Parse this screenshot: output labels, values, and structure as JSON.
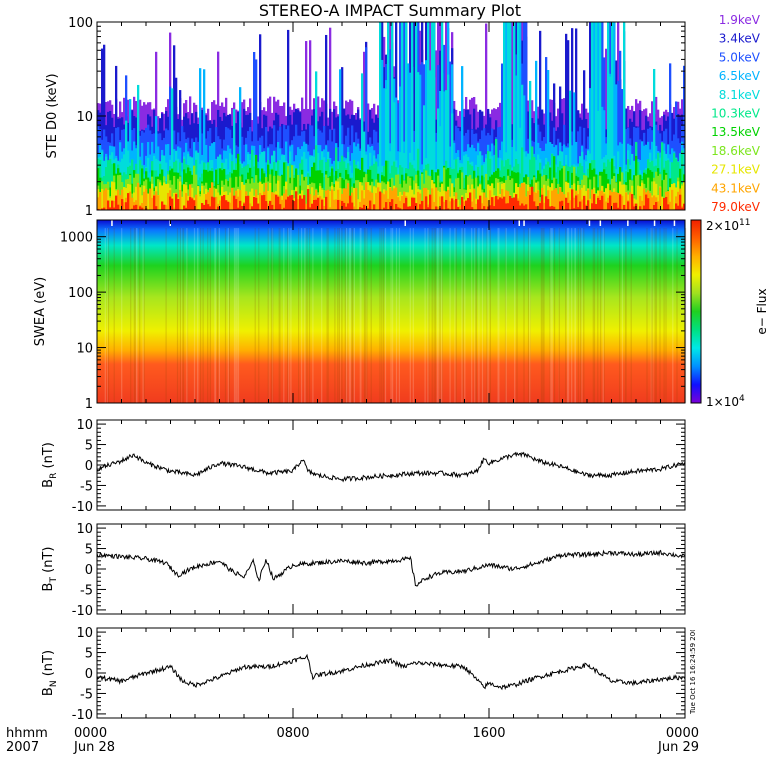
{
  "title": "STEREO-A IMPACT Summary Plot",
  "time_axis": {
    "row_labels": [
      "hhmm",
      "2007"
    ],
    "ticks": [
      {
        "time": "0000",
        "date": "Jun 28",
        "hours": 0
      },
      {
        "time": "0800",
        "date": "",
        "hours": 8
      },
      {
        "time": "1600",
        "date": "",
        "hours": 16
      },
      {
        "time": "0000",
        "date": "Jun 29",
        "hours": 24
      }
    ],
    "range_hours": [
      0,
      24
    ]
  },
  "side_stamp": "Tue Oct 16 16:24:59 2007",
  "chart_data": [
    {
      "type": "line",
      "panel": "ste",
      "ylabel": "STE D0 (keV)",
      "yscale": "log",
      "ylim": [
        1,
        100
      ],
      "yticks": [
        "1",
        "10",
        "100"
      ],
      "grid": false,
      "legend_position": "right",
      "series": [
        {
          "name": "1.9keV",
          "color": "#8a2be2",
          "typical": 12,
          "max": 100
        },
        {
          "name": "3.4keV",
          "color": "#1a1acd",
          "typical": 9,
          "max": 100
        },
        {
          "name": "5.0keV",
          "color": "#1e50ff",
          "typical": 6,
          "max": 100
        },
        {
          "name": "6.5keV",
          "color": "#00b4ff",
          "typical": 4,
          "max": 100
        },
        {
          "name": "8.1keV",
          "color": "#00dcdc",
          "typical": 3.2,
          "max": 100
        },
        {
          "name": "10.3keV",
          "color": "#00e88a",
          "typical": 2.6,
          "max": 6
        },
        {
          "name": "13.5keV",
          "color": "#00d200",
          "typical": 2.1,
          "max": 4
        },
        {
          "name": "18.6keV",
          "color": "#7ce61e",
          "typical": 1.8,
          "max": 3
        },
        {
          "name": "27.1keV",
          "color": "#e6e600",
          "typical": 1.5,
          "max": 2.2
        },
        {
          "name": "43.1keV",
          "color": "#ffa500",
          "typical": 1.3,
          "max": 2.0
        },
        {
          "name": "79.0keV",
          "color": "#ff2a00",
          "typical": 1.1,
          "max": 1.8
        }
      ]
    },
    {
      "type": "heatmap",
      "panel": "swea",
      "ylabel": "SWEA (eV)",
      "yscale": "log",
      "ylim": [
        1,
        2000
      ],
      "yticks": [
        "1",
        "10",
        "100",
        "1000"
      ],
      "colorbar": {
        "label": "e− Flux",
        "max_label": "2×10",
        "max_exp": "11",
        "min_label": "1×10",
        "min_exp": "4",
        "range": [
          10000,
          200000000000
        ],
        "colors": [
          "#7a00d8",
          "#1010ff",
          "#0090ff",
          "#00e8e8",
          "#00e080",
          "#20d020",
          "#a0e020",
          "#f0f000",
          "#ffb000",
          "#ff6000",
          "#f02000"
        ]
      },
      "energy_color_bands": [
        {
          "ev": 1,
          "color": "#f03c1e"
        },
        {
          "ev": 5,
          "color": "#ff5a1e"
        },
        {
          "ev": 9,
          "color": "#ffb000"
        },
        {
          "ev": 20,
          "color": "#f0f000"
        },
        {
          "ev": 80,
          "color": "#a8e61e"
        },
        {
          "ev": 300,
          "color": "#1ed21e"
        },
        {
          "ev": 700,
          "color": "#00e6c8"
        },
        {
          "ev": 1300,
          "color": "#0a78ff"
        },
        {
          "ev": 2000,
          "color": "#0a0ad2"
        }
      ]
    },
    {
      "type": "line",
      "panel": "br",
      "ylabel": "B",
      "ylabel_sub": "R",
      "ylabel_unit": " (nT)",
      "ylim": [
        -11,
        11
      ],
      "yticks": [
        -10,
        -5,
        0,
        5,
        10
      ],
      "x_hours": [
        0,
        1,
        1.5,
        2,
        3,
        4,
        5,
        6,
        7,
        8,
        8.4,
        8.6,
        9,
        10,
        11,
        12,
        13,
        14,
        15,
        15.5,
        15.8,
        16,
        17,
        17.5,
        18,
        19,
        20,
        21,
        22,
        23,
        24
      ],
      "series": [
        {
          "name": "",
          "values": [
            -1,
            1,
            2.5,
            0.5,
            -1.5,
            -2.5,
            0.5,
            -0.5,
            -2,
            -1.5,
            1.5,
            -1.5,
            -2.5,
            -3.5,
            -3,
            -2.5,
            -2,
            -2,
            -2.5,
            -1.5,
            1.5,
            0.5,
            2.5,
            2.5,
            1,
            -0.5,
            -2.5,
            -2.5,
            -1.5,
            -1,
            0.5
          ]
        }
      ]
    },
    {
      "type": "line",
      "panel": "bt",
      "ylabel": "B",
      "ylabel_sub": "T",
      "ylabel_unit": " (nT)",
      "ylim": [
        -11,
        11
      ],
      "yticks": [
        -10,
        -5,
        0,
        5,
        10
      ],
      "x_hours": [
        0,
        1,
        2,
        2.8,
        3.3,
        4,
        5,
        5.5,
        6,
        6.4,
        6.6,
        6.9,
        7.2,
        8,
        9,
        10,
        11,
        12,
        12.8,
        13,
        13.5,
        14,
        15,
        16,
        17,
        18,
        19,
        20,
        21,
        22,
        23,
        24
      ],
      "series": [
        {
          "name": "",
          "values": [
            3.5,
            3,
            2.5,
            1.5,
            -1.5,
            0.5,
            2,
            -0.5,
            -2,
            2,
            -3,
            2.5,
            -2.5,
            1,
            1.5,
            2,
            1.5,
            2,
            2.5,
            -4,
            -2,
            -1,
            -0.5,
            1,
            0,
            1.5,
            3.5,
            3.5,
            4,
            3.5,
            4,
            3
          ]
        }
      ]
    },
    {
      "type": "line",
      "panel": "bn",
      "ylabel": "B",
      "ylabel_sub": "N",
      "ylabel_unit": " (nT)",
      "ylim": [
        -11,
        11
      ],
      "yticks": [
        -10,
        -5,
        0,
        5,
        10
      ],
      "x_hours": [
        0,
        1,
        2,
        3,
        3.5,
        4,
        5,
        6,
        7,
        8,
        8.6,
        8.8,
        9,
        10,
        11,
        12,
        12.5,
        13,
        14,
        15,
        15.8,
        16,
        16.5,
        17,
        18,
        19,
        20,
        21,
        22,
        23,
        24
      ],
      "series": [
        {
          "name": "",
          "values": [
            -1,
            -2,
            0,
            1.5,
            -2,
            -3,
            -1,
            1.5,
            1.5,
            3,
            4,
            -1,
            -0.5,
            0.5,
            2,
            3,
            1.5,
            2.5,
            2,
            1.5,
            -3.5,
            -2.5,
            -3.5,
            -3,
            -1,
            0.5,
            2,
            -2,
            -2.5,
            -1.5,
            -1
          ]
        }
      ]
    }
  ]
}
